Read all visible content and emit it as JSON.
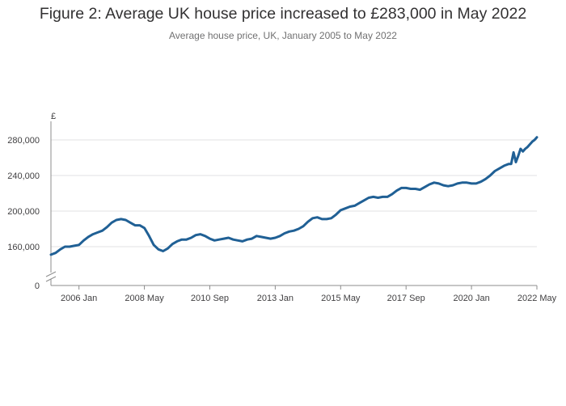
{
  "title": "Figure 2: Average UK house price increased to £283,000 in May 2022",
  "subtitle": "Average house price, UK, January 2005 to May 2022",
  "chart_data": {
    "type": "line",
    "title": "Figure 2: Average UK house price increased to £283,000 in May 2022",
    "subtitle": "Average house price, UK, January 2005 to May 2022",
    "xlabel": "",
    "ylabel": "£",
    "y_ticks": [
      0,
      160000,
      200000,
      240000,
      280000
    ],
    "y_tick_labels": [
      "0",
      "160,000",
      "200,000",
      "240,000",
      "280,000"
    ],
    "x_tick_labels": [
      "2006 Jan",
      "2008 May",
      "2010 Sep",
      "2013 Jan",
      "2015 May",
      "2017 Sep",
      "2020 Jan",
      "2022 May"
    ],
    "x_tick_dates": [
      "2006-01",
      "2008-05",
      "2010-09",
      "2013-01",
      "2015-05",
      "2017-09",
      "2020-01",
      "2022-05"
    ],
    "ylim": [
      0,
      300000
    ],
    "axis_break": true,
    "grid": "horizontal",
    "line_color": "#206095",
    "series": [
      {
        "x": [
          "2005-01",
          "2005-03",
          "2005-05",
          "2005-07",
          "2005-09",
          "2005-11",
          "2006-01",
          "2006-03",
          "2006-05",
          "2006-07",
          "2006-09",
          "2006-11",
          "2007-01",
          "2007-03",
          "2007-05",
          "2007-07",
          "2007-09",
          "2007-11",
          "2008-01",
          "2008-03",
          "2008-05",
          "2008-07",
          "2008-09",
          "2008-11",
          "2009-01",
          "2009-03",
          "2009-05",
          "2009-07",
          "2009-09",
          "2009-11",
          "2010-01",
          "2010-03",
          "2010-05",
          "2010-07",
          "2010-09",
          "2010-11",
          "2011-01",
          "2011-03",
          "2011-05",
          "2011-07",
          "2011-09",
          "2011-11",
          "2012-01",
          "2012-03",
          "2012-05",
          "2012-07",
          "2012-09",
          "2012-11",
          "2013-01",
          "2013-03",
          "2013-05",
          "2013-07",
          "2013-09",
          "2013-11",
          "2014-01",
          "2014-03",
          "2014-05",
          "2014-07",
          "2014-09",
          "2014-11",
          "2015-01",
          "2015-03",
          "2015-05",
          "2015-07",
          "2015-09",
          "2015-11",
          "2016-01",
          "2016-03",
          "2016-05",
          "2016-07",
          "2016-09",
          "2016-11",
          "2017-01",
          "2017-03",
          "2017-05",
          "2017-07",
          "2017-09",
          "2017-11",
          "2018-01",
          "2018-03",
          "2018-05",
          "2018-07",
          "2018-09",
          "2018-11",
          "2019-01",
          "2019-03",
          "2019-05",
          "2019-07",
          "2019-09",
          "2019-11",
          "2020-01",
          "2020-03",
          "2020-05",
          "2020-07",
          "2020-09",
          "2020-11",
          "2021-01",
          "2021-03",
          "2021-05",
          "2021-06",
          "2021-07",
          "2021-08",
          "2021-09",
          "2021-10",
          "2021-11",
          "2021-12",
          "2022-01",
          "2022-02",
          "2022-03",
          "2022-04",
          "2022-05"
        ],
        "values": [
          151000,
          153000,
          157000,
          160000,
          160000,
          161000,
          162000,
          167000,
          171000,
          174000,
          176000,
          178000,
          182000,
          187000,
          190000,
          191000,
          190000,
          187000,
          184000,
          184000,
          181000,
          172000,
          162000,
          157000,
          155000,
          158000,
          163000,
          166000,
          168000,
          168000,
          170000,
          173000,
          174000,
          172000,
          169000,
          167000,
          168000,
          169000,
          170000,
          168000,
          167000,
          166000,
          168000,
          169000,
          172000,
          171000,
          170000,
          169000,
          170000,
          172000,
          175000,
          177000,
          178000,
          180000,
          183000,
          188000,
          192000,
          193000,
          191000,
          191000,
          192000,
          196000,
          201000,
          203000,
          205000,
          206000,
          209000,
          212000,
          215000,
          216000,
          215000,
          216000,
          216000,
          219000,
          223000,
          226000,
          226000,
          225000,
          225000,
          224000,
          227000,
          230000,
          232000,
          231000,
          229000,
          228000,
          229000,
          231000,
          232000,
          232000,
          231000,
          231000,
          233000,
          236000,
          240000,
          245000,
          248000,
          251000,
          253000,
          253000,
          266000,
          255000,
          262000,
          270000,
          267000,
          270000,
          272000,
          275000,
          278000,
          280000,
          283000
        ]
      }
    ]
  }
}
